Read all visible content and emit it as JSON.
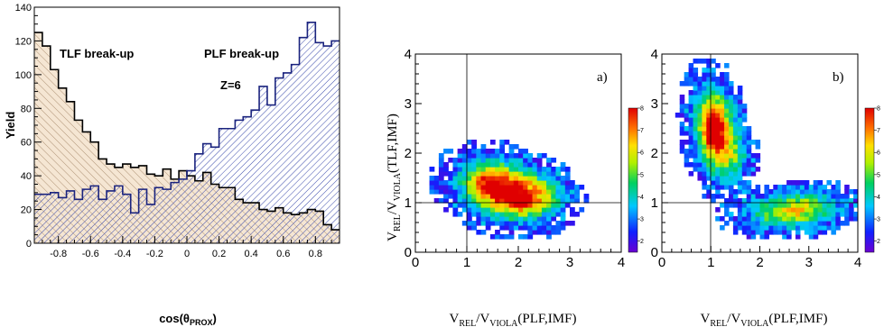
{
  "chart_data": [
    {
      "type": "histogram",
      "xlabel": "cos(θ",
      "xlabel_sub": "PROX",
      "xlabel_close": ")",
      "ylabel": "Yield",
      "xlim": [
        -0.95,
        0.95
      ],
      "ylim": [
        0,
        140
      ],
      "x_ticks": [
        -0.8,
        -0.6,
        -0.4,
        -0.2,
        0,
        0.2,
        0.4,
        0.6,
        0.8
      ],
      "x_tick_labels": [
        "-0.8",
        "-0.6",
        "-0.4",
        "-0.2",
        "0",
        "0.2",
        "0.4",
        "0.6",
        "0.8"
      ],
      "y_ticks": [
        0,
        20,
        40,
        60,
        80,
        100,
        120,
        140
      ],
      "y_tick_labels": [
        "0",
        "20",
        "40",
        "60",
        "80",
        "100",
        "120",
        "140"
      ],
      "annotations": [
        "TLF break-up",
        "PLF break-up",
        "Z=6"
      ],
      "bin_edges_start": -0.95,
      "bin_width": 0.05,
      "series": [
        {
          "name": "TLF break-up",
          "color": "#000000",
          "fill": "#f5e6d3",
          "values": [
            125,
            117,
            103,
            92,
            84,
            73,
            66,
            60,
            50,
            47,
            45,
            47,
            45,
            46,
            41,
            40,
            44,
            38,
            43,
            40,
            37,
            42,
            35,
            33,
            33,
            26,
            24,
            24,
            20,
            19,
            21,
            18,
            17,
            18,
            20,
            19,
            11,
            8
          ]
        },
        {
          "name": "PLF break-up",
          "color": "#1a237e",
          "fill": "#3949ab",
          "values": [
            29,
            29,
            30,
            27,
            31,
            26,
            32,
            34,
            26,
            31,
            34,
            29,
            18,
            32,
            23,
            33,
            32,
            36,
            38,
            43,
            53,
            59,
            57,
            68,
            68,
            73,
            75,
            79,
            93,
            82,
            98,
            101,
            106,
            122,
            131,
            119,
            117,
            120
          ]
        }
      ]
    },
    {
      "type": "heatmap",
      "panel_label": "a)",
      "xlabel": "V_REL/V_VIOLA(PLF,IMF)",
      "ylabel": "V_REL/V_VIOLA(TLF,IMF)",
      "xlim": [
        0,
        4
      ],
      "ylim": [
        0,
        4
      ],
      "x_ticks": [
        0,
        1,
        2,
        3,
        4
      ],
      "y_ticks": [
        0,
        1,
        2,
        3,
        4
      ],
      "tick_labels": [
        "0",
        "1",
        "2",
        "3",
        "4"
      ],
      "reference_lines": {
        "x": 1,
        "y": 1
      },
      "colorbar_ticks": [
        "2",
        "3",
        "4",
        "5",
        "6",
        "7",
        "8"
      ],
      "colorbar_range": [
        1.5,
        8
      ],
      "blobs": [
        {
          "x": 1.75,
          "y": 1.25,
          "sx": 0.6,
          "sy": 0.38,
          "amp": 6.5,
          "rot": -0.25
        },
        {
          "x": 2.0,
          "y": 1.05,
          "sx": 0.28,
          "sy": 0.15,
          "amp": 1.9,
          "rot": -0.3
        },
        {
          "x": 1.35,
          "y": 1.45,
          "sx": 0.22,
          "sy": 0.18,
          "amp": 1.6,
          "rot": 0
        },
        {
          "x": 2.55,
          "y": 1.2,
          "sx": 0.32,
          "sy": 0.25,
          "amp": 1.4,
          "rot": 0
        }
      ]
    },
    {
      "type": "heatmap",
      "panel_label": "b)",
      "xlabel": "V_REL/V_VIOLA(PLF,IMF)",
      "xlim": [
        0,
        4
      ],
      "ylim": [
        0,
        4
      ],
      "x_ticks": [
        0,
        1,
        2,
        3,
        4
      ],
      "y_ticks": [
        0,
        1,
        2,
        3,
        4
      ],
      "tick_labels": [
        "0",
        "1",
        "2",
        "3",
        "4"
      ],
      "reference_lines": {
        "x": 1,
        "y": 1
      },
      "colorbar_ticks": [
        "2",
        "3",
        "4",
        "5",
        "6",
        "7",
        "8"
      ],
      "colorbar_range": [
        1.5,
        8
      ],
      "blobs": [
        {
          "x": 1.1,
          "y": 2.45,
          "sx": 0.3,
          "sy": 0.6,
          "amp": 6.3,
          "rot": 0.15
        },
        {
          "x": 1.05,
          "y": 2.55,
          "sx": 0.12,
          "sy": 0.28,
          "amp": 2.0,
          "rot": 0
        },
        {
          "x": 2.7,
          "y": 0.85,
          "sx": 0.65,
          "sy": 0.25,
          "amp": 4.6,
          "rot": 0.1
        },
        {
          "x": 1.55,
          "y": 1.9,
          "sx": 0.22,
          "sy": 0.3,
          "amp": 1.3,
          "rot": 0
        }
      ]
    }
  ]
}
